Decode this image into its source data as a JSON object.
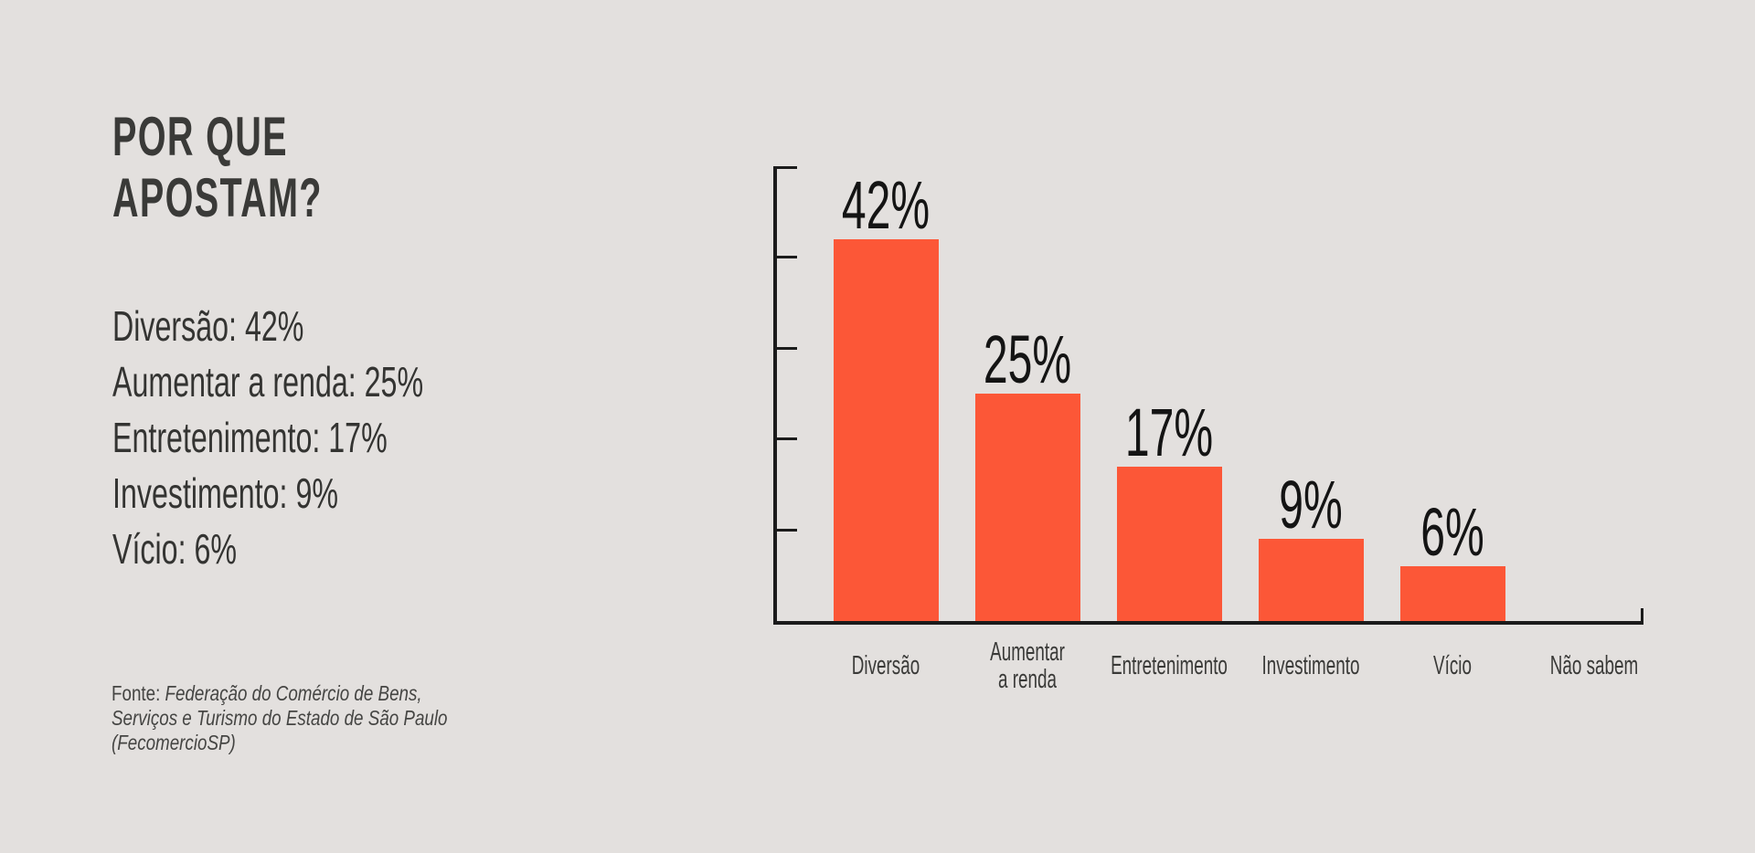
{
  "page": {
    "background": "#e3e0de"
  },
  "header": {
    "title_lines": [
      "POR QUE",
      "APOSTAM?"
    ]
  },
  "summary": {
    "items": [
      "Diversão: 42%",
      "Aumentar a renda: 25%",
      "Entretenimento: 17%",
      "Investimento: 9%",
      "Vício: 6%"
    ]
  },
  "source": {
    "prefix": "Fonte:",
    "line1_rest": "Federação do Comércio de Bens,",
    "line2": "Serviços e Turismo do Estado de São Paulo",
    "line3": "(FecomercioSP)"
  },
  "chart_data": {
    "type": "bar",
    "title": "POR QUE APOSTAM?",
    "categories": [
      "Diversão",
      "Aumentar\na renda",
      "Entretenimento",
      "Investimento",
      "Vício",
      "Não sabem"
    ],
    "values": [
      42,
      25,
      17,
      9,
      6,
      0
    ],
    "value_labels": [
      "42%",
      "25%",
      "17%",
      "9%",
      "6%",
      ""
    ],
    "xlabel": "",
    "ylabel": "",
    "ylim": [
      0,
      50
    ],
    "yticks": [
      10,
      20,
      30,
      40,
      50
    ],
    "grid": false,
    "legend": false,
    "bar_color": "#fc5737",
    "axis_color": "#1b1b1b",
    "value_label_color": "#141414",
    "category_label_color": "#3a3a38"
  }
}
